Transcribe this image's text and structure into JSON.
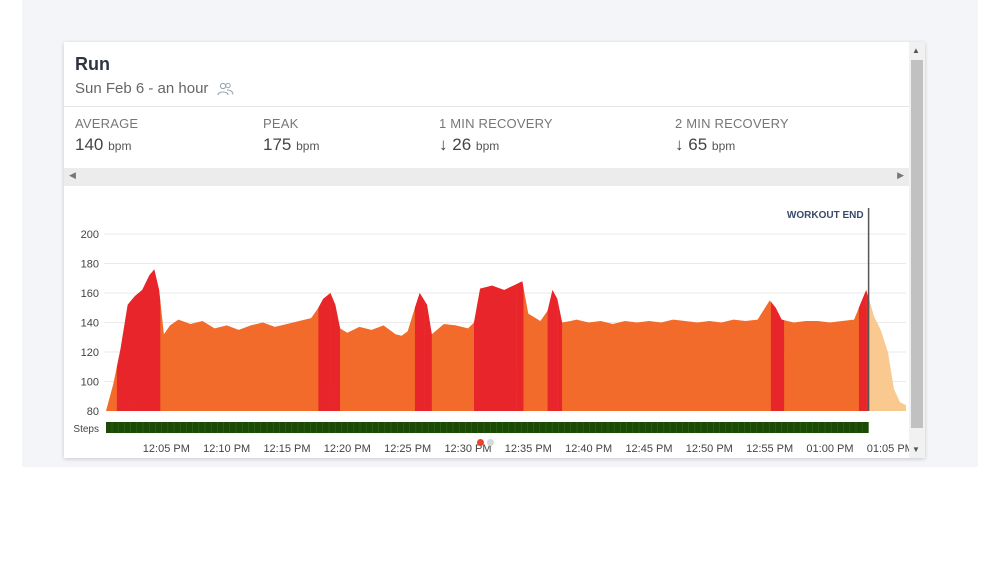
{
  "workout": {
    "title": "Run",
    "subtitle": "Sun Feb 6 - an hour",
    "icon": "people-icon"
  },
  "stats": [
    {
      "label": "AVERAGE",
      "value": "140",
      "arrow": "",
      "unit": "bpm"
    },
    {
      "label": "PEAK",
      "value": "175",
      "arrow": "",
      "unit": "bpm"
    },
    {
      "label": "1 MIN RECOVERY",
      "value": "26",
      "arrow": "↓",
      "unit": "bpm"
    },
    {
      "label": "2 MIN RECOVERY",
      "value": "65",
      "arrow": "↓",
      "unit": "bpm"
    }
  ],
  "colors": {
    "zone_orange": "#f26b2b",
    "zone_red": "#e8252b",
    "zone_light": "#f9c98f",
    "steps": "#1a4a06",
    "marker": "#555555",
    "dot_active": "#e8452c",
    "dot_inactive": "#d8d8d8"
  },
  "chart_data": {
    "type": "area",
    "y_ticks": [
      "200",
      "180",
      "160",
      "140",
      "120",
      "100",
      "80"
    ],
    "ylim": [
      80,
      200
    ],
    "x_ticks": [
      "12:05 PM",
      "12:10 PM",
      "12:15 PM",
      "12:20 PM",
      "12:25 PM",
      "12:30 PM",
      "12:35 PM",
      "12:40 PM",
      "12:45 PM",
      "12:50 PM",
      "12:55 PM",
      "01:00 PM",
      "01:05 PM"
    ],
    "x_start_min": 0,
    "x_end_min": 66.3,
    "steps_label": "Steps",
    "workout_end_label": "WORKOUT END",
    "workout_end_min": 63.2,
    "heart_rate": [
      [
        0.0,
        80
      ],
      [
        0.6,
        98
      ],
      [
        1.2,
        122
      ],
      [
        1.8,
        152
      ],
      [
        2.4,
        158
      ],
      [
        3.0,
        162
      ],
      [
        3.6,
        172
      ],
      [
        4.0,
        176
      ],
      [
        4.4,
        162
      ],
      [
        4.8,
        132
      ],
      [
        5.3,
        138
      ],
      [
        6.0,
        142
      ],
      [
        7.0,
        139
      ],
      [
        8.0,
        141
      ],
      [
        9.0,
        136
      ],
      [
        10.0,
        138
      ],
      [
        11.0,
        135
      ],
      [
        12.0,
        138
      ],
      [
        13.0,
        140
      ],
      [
        14.0,
        137
      ],
      [
        15.0,
        139
      ],
      [
        16.0,
        141
      ],
      [
        17.0,
        143
      ],
      [
        17.6,
        150
      ],
      [
        18.0,
        156
      ],
      [
        18.6,
        160
      ],
      [
        19.0,
        152
      ],
      [
        19.4,
        136
      ],
      [
        20.0,
        133
      ],
      [
        21.0,
        137
      ],
      [
        22.0,
        135
      ],
      [
        23.0,
        138
      ],
      [
        24.0,
        132
      ],
      [
        24.5,
        131
      ],
      [
        25.0,
        134
      ],
      [
        25.6,
        150
      ],
      [
        26.0,
        160
      ],
      [
        26.6,
        152
      ],
      [
        27.0,
        132
      ],
      [
        28.0,
        139
      ],
      [
        29.0,
        138
      ],
      [
        30.0,
        136
      ],
      [
        30.5,
        140
      ],
      [
        31.0,
        163
      ],
      [
        32.0,
        165
      ],
      [
        33.0,
        162
      ],
      [
        34.0,
        166
      ],
      [
        34.5,
        168
      ],
      [
        35.0,
        146
      ],
      [
        36.0,
        141
      ],
      [
        36.6,
        148
      ],
      [
        37.0,
        162
      ],
      [
        37.4,
        156
      ],
      [
        37.8,
        140
      ],
      [
        38.5,
        141
      ],
      [
        39.0,
        142
      ],
      [
        40.0,
        140
      ],
      [
        41.0,
        141
      ],
      [
        42.0,
        139
      ],
      [
        43.0,
        141
      ],
      [
        44.0,
        140
      ],
      [
        45.0,
        141
      ],
      [
        46.0,
        140
      ],
      [
        47.0,
        142
      ],
      [
        48.0,
        141
      ],
      [
        49.0,
        140
      ],
      [
        50.0,
        141
      ],
      [
        51.0,
        140
      ],
      [
        52.0,
        142
      ],
      [
        53.0,
        141
      ],
      [
        54.0,
        142
      ],
      [
        55.0,
        155
      ],
      [
        55.5,
        150
      ],
      [
        56.0,
        142
      ],
      [
        57.0,
        140
      ],
      [
        58.0,
        141
      ],
      [
        59.0,
        141
      ],
      [
        60.0,
        140
      ],
      [
        61.0,
        141
      ],
      [
        62.0,
        142
      ],
      [
        62.5,
        152
      ],
      [
        63.0,
        162
      ],
      [
        63.6,
        145
      ],
      [
        64.2,
        135
      ],
      [
        64.8,
        120
      ],
      [
        65.3,
        95
      ],
      [
        65.8,
        86
      ],
      [
        66.3,
        84
      ]
    ],
    "red_zones": [
      [
        0.9,
        2.2
      ],
      [
        17.6,
        18.6
      ],
      [
        25.6,
        26.4
      ],
      [
        30.5,
        34.0
      ],
      [
        36.6,
        37.4
      ],
      [
        55.1,
        55.9
      ],
      [
        62.4,
        63.0
      ]
    ],
    "red_spikes": [
      [
        2.2,
        4.5
      ],
      [
        18.6,
        19.4
      ],
      [
        26.4,
        27.0
      ],
      [
        34.0,
        34.6
      ],
      [
        37.4,
        37.8
      ],
      [
        55.9,
        56.2
      ],
      [
        63.0,
        63.6
      ]
    ]
  }
}
